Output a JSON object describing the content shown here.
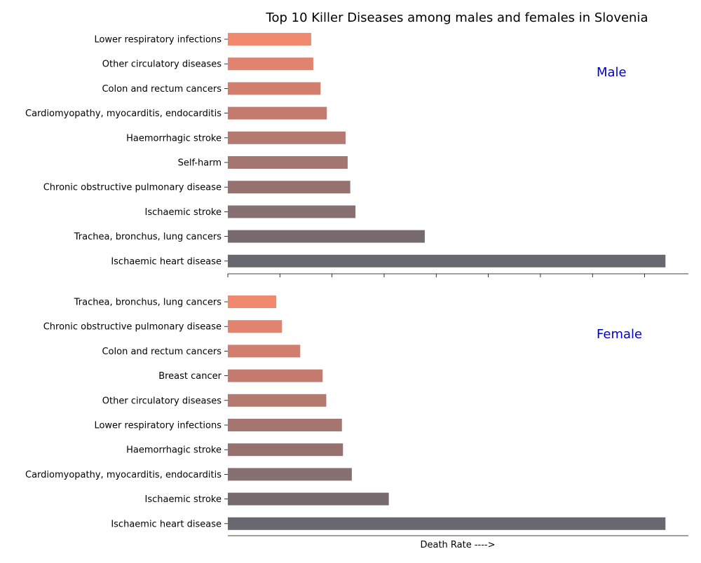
{
  "chart_data": {
    "type": "bar",
    "title": "Top 10 Killer Diseases among males and females in Slovenia",
    "xlabel": "Death Rate ---->",
    "panels": [
      {
        "name": "Male",
        "categories": [
          "Lower respiratory infections",
          "Other circulatory diseases",
          "Colon and rectum cancers",
          "Cardiomyopathy, myocarditis, endocarditis",
          "Haemorrhagic stroke",
          "Self-harm",
          "Chronic obstructive pulmonary disease",
          "Ischaemic stroke",
          "Trachea, bronchus, lung cancers",
          "Ischaemic heart disease"
        ],
        "values": [
          16,
          16.4,
          17.8,
          19,
          22.6,
          23,
          23.5,
          24.5,
          37.8,
          84
        ]
      },
      {
        "name": "Female",
        "categories": [
          "Trachea, bronchus, lung cancers",
          "Chronic obstructive pulmonary disease",
          "Colon and rectum cancers",
          "Breast cancer",
          "Other circulatory diseases",
          "Lower respiratory infections",
          "Haemorrhagic stroke",
          "Cardiomyopathy, myocarditis, endocarditis",
          "Ischaemic stroke",
          "Ischaemic heart disease"
        ],
        "values": [
          9.3,
          10.4,
          13.9,
          18.2,
          18.9,
          21.9,
          22.1,
          23.8,
          30.9,
          84
        ]
      }
    ],
    "xlim": [
      0,
      88.4
    ],
    "x_ticks": [
      0,
      10,
      20,
      30,
      40,
      50,
      60,
      70,
      80
    ],
    "x_tick_labels_visible": false,
    "colors": [
      "#F0896E",
      "#E0836F",
      "#D27E6F",
      "#C47A6E",
      "#B47A6F",
      "#A5756F",
      "#95716F",
      "#867071",
      "#766A6F",
      "#686870"
    ],
    "panel_label_color": "#0000CC"
  }
}
